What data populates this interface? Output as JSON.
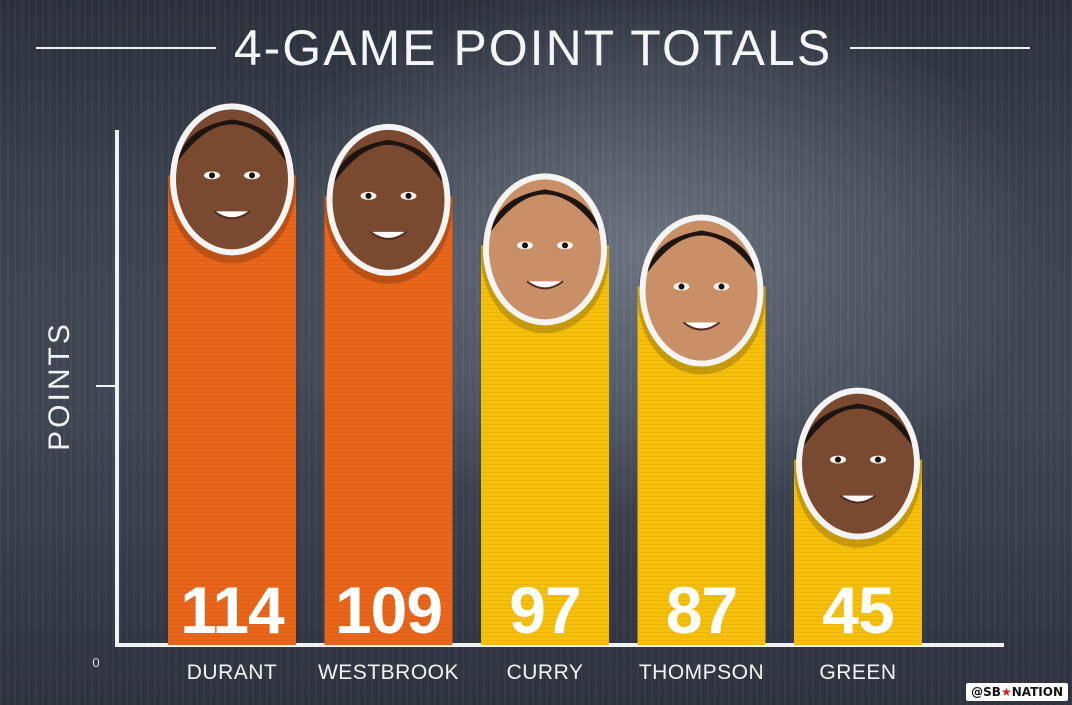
{
  "title": "4-GAME POINT TOTALS",
  "watermark": {
    "prefix": "@SB",
    "star": "★",
    "suffix": "NATION"
  },
  "chart_data": {
    "type": "bar",
    "title": "4-GAME POINT TOTALS",
    "xlabel": "",
    "ylabel": "POINTS",
    "ylim": [
      0,
      125
    ],
    "y_tick_labels": [
      "0"
    ],
    "grid": false,
    "legend": "none",
    "categories": [
      "DURANT",
      "WESTBROOK",
      "CURRY",
      "THOMPSON",
      "GREEN"
    ],
    "values": [
      114,
      109,
      97,
      87,
      45
    ],
    "bar_colors": [
      "#e8651a",
      "#e8651a",
      "#f5bf0a",
      "#f5bf0a",
      "#f5bf0a"
    ],
    "bar_data_labels": [
      "114",
      "109",
      "97",
      "87",
      "45"
    ],
    "bar_icons": [
      "player-face-icon",
      "player-face-icon",
      "player-face-icon",
      "player-face-icon",
      "player-face-icon"
    ]
  }
}
